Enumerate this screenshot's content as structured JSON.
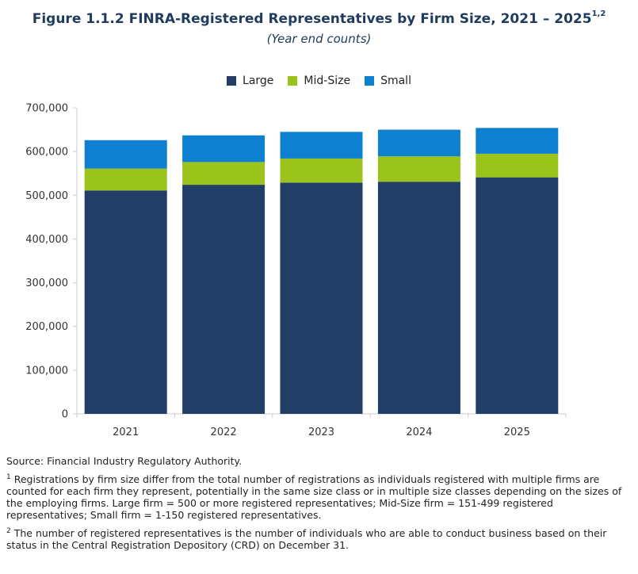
{
  "header": {
    "title": "Figure 1.1.2 FINRA-Registered Representatives by Firm Size, 2021 – 2025",
    "title_sup": "1,2",
    "subtitle": "(Year end counts)"
  },
  "colors": {
    "large": "#233e66",
    "mid": "#9ac31c",
    "small": "#0f7fd0",
    "axis": "#cccccc",
    "text": "#333333"
  },
  "chart_data": {
    "type": "bar",
    "stacked": true,
    "categories": [
      "2021",
      "2022",
      "2023",
      "2024",
      "2025"
    ],
    "series": [
      {
        "name": "Large",
        "values": [
          511000,
          524000,
          529000,
          531000,
          541000
        ]
      },
      {
        "name": "Mid-Size",
        "values": [
          50000,
          52000,
          55000,
          58000,
          54000
        ]
      },
      {
        "name": "Small",
        "values": [
          65000,
          61000,
          61000,
          61000,
          59000
        ]
      }
    ],
    "ylim": [
      0,
      700000
    ],
    "yticks": [
      "0",
      "100,000",
      "200,000",
      "300,000",
      "400,000",
      "500,000",
      "600,000",
      "700,000"
    ],
    "legend_position": "top-center",
    "grid": false
  },
  "notes": {
    "source": "Source: Financial Industry Regulatory Authority.",
    "fn1_mark": "1",
    "fn1_text": "Registrations by firm size differ from the total number of registrations as individuals registered with multiple firms are counted for each firm they represent, potentially in the same size class or in multiple size classes depending on the sizes of the employing firms. Large firm = 500 or more registered representatives; Mid-Size firm = 151-499 registered representatives; Small firm = 1-150 registered representatives.",
    "fn2_mark": "2",
    "fn2_text": "The number of registered representatives is the number of individuals who are able to conduct business based on their status in the Central Registration Depository (CRD) on December 31."
  }
}
